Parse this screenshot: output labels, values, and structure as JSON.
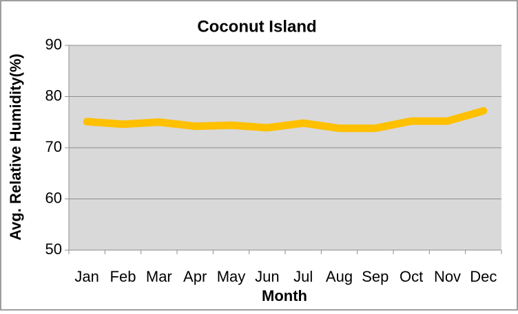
{
  "chart_data": {
    "type": "line",
    "title": "Coconut Island",
    "x_label": "Month",
    "y_label": "Avg. Relative Humidity(%)",
    "categories": [
      "Jan",
      "Feb",
      "Mar",
      "Apr",
      "May",
      "Jun",
      "Jul",
      "Aug",
      "Sep",
      "Oct",
      "Nov",
      "Dec"
    ],
    "series": [
      {
        "name": "Avg. Relative Humidity",
        "color": "#ffc000",
        "values": [
          75.1,
          74.6,
          75,
          74.2,
          74.4,
          73.9,
          74.8,
          73.8,
          73.8,
          75.2,
          75.2,
          77.2
        ]
      }
    ],
    "ylim": [
      50,
      90
    ],
    "yticks": [
      50,
      60,
      70,
      80,
      90
    ],
    "grid": true
  }
}
